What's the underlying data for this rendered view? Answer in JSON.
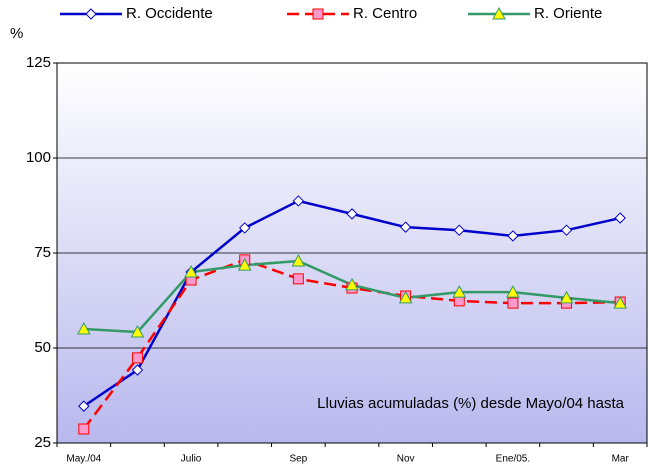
{
  "chart_data": {
    "type": "line",
    "y_label": "%",
    "annotation": "Lluvias acumuladas (%) desde Mayo/04 hasta",
    "categories": [
      "May./04",
      null,
      "Julio",
      null,
      "Sep",
      null,
      "Nov",
      null,
      "Ene/05.",
      null,
      "Mar"
    ],
    "series": [
      {
        "name": "R. Occidente",
        "color": "#0000cc",
        "marker": "diamond",
        "marker_color": "#ffffff",
        "dashed": false,
        "values": [
          34.7,
          44.2,
          70,
          81.6,
          88.7,
          85.3,
          81.8,
          81,
          79.5,
          81,
          84.2
        ]
      },
      {
        "name": "R. Centro",
        "color": "#ff0000",
        "marker": "square",
        "marker_color": "#ff99cc",
        "dashed": true,
        "values": [
          28.7,
          47.4,
          67.9,
          73.2,
          68.2,
          65.8,
          63.7,
          62.4,
          61.8,
          61.8,
          62.1
        ]
      },
      {
        "name": "R. Oriente",
        "color": "#339966",
        "marker": "triangle",
        "marker_color": "#ffff00",
        "dashed": false,
        "values": [
          55,
          54.2,
          70,
          71.8,
          72.9,
          66.6,
          63.2,
          64.7,
          64.7,
          63.2,
          61.8
        ]
      }
    ],
    "ylim": [
      25,
      125
    ],
    "yticks": [
      25,
      50,
      75,
      100,
      125
    ],
    "grid": true
  }
}
